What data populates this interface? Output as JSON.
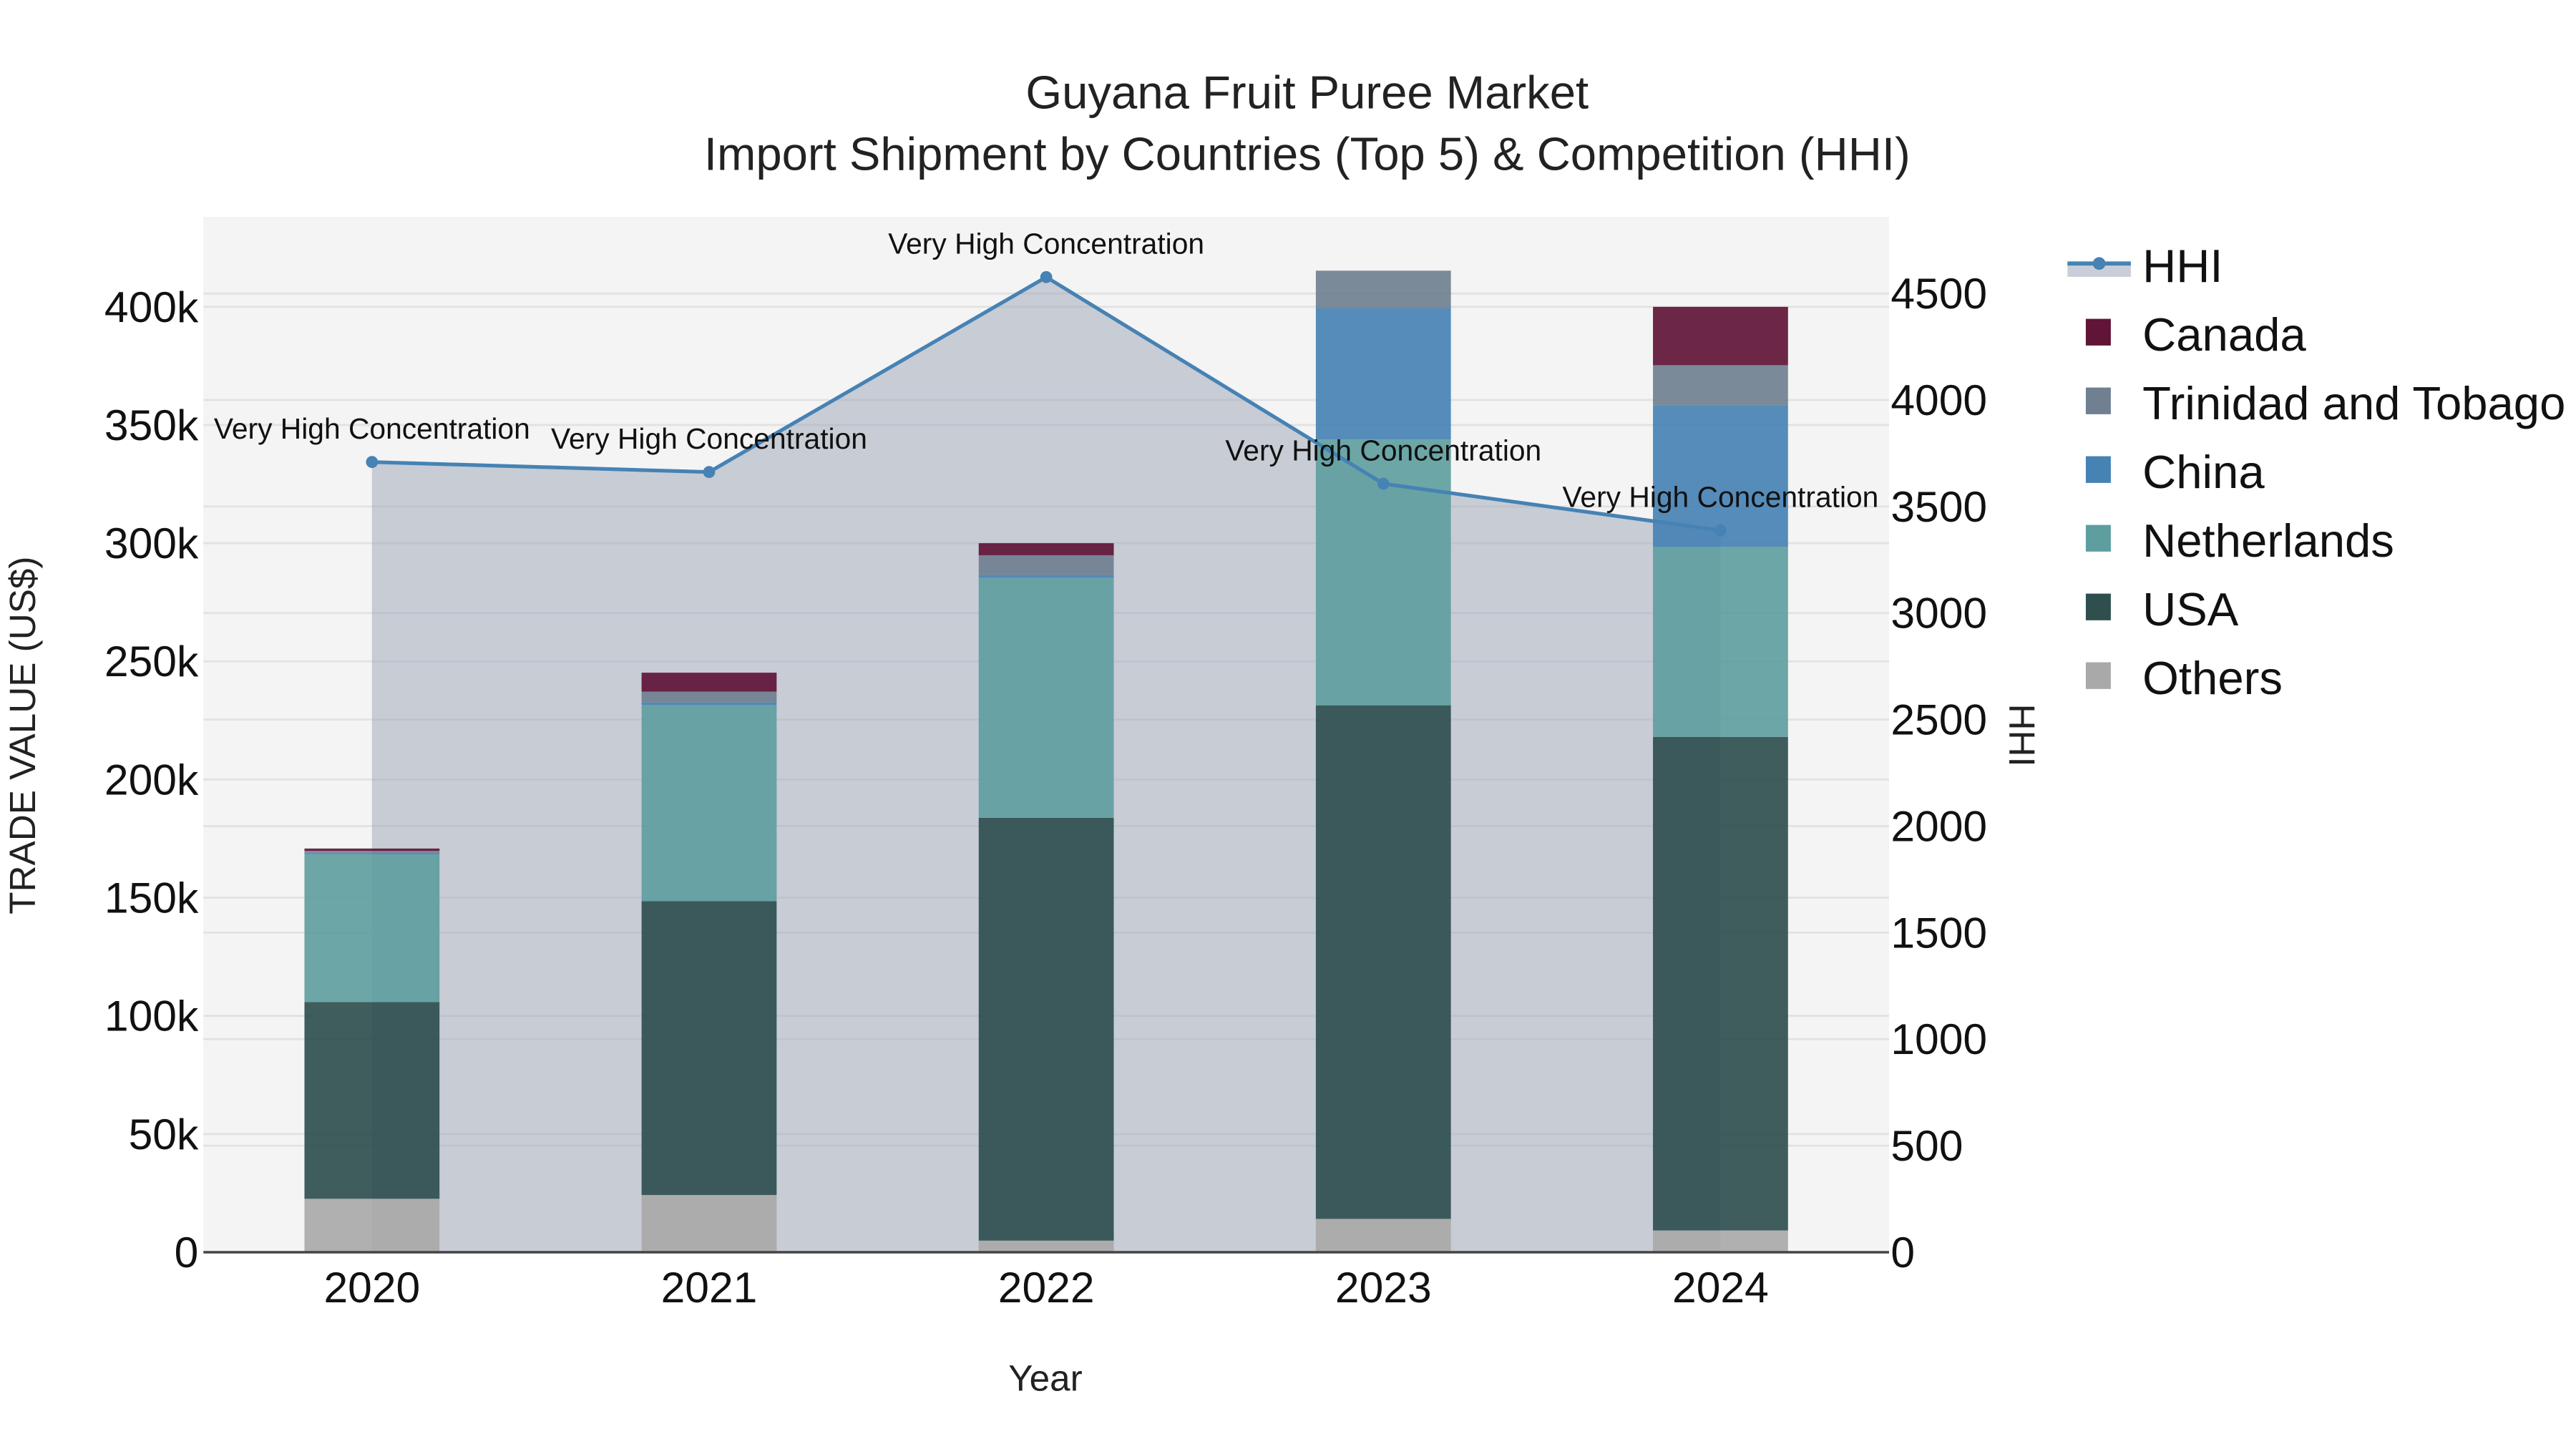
{
  "chart_data": {
    "type": "bar",
    "stacked": true,
    "title": "Guyana Fruit Puree Market",
    "subtitle": "Import Shipment by Countries (Top 5) & Competition (HHI)",
    "xlabel": "Year",
    "ylabel": "TRADE VALUE (US$)",
    "y2label": "HHI",
    "categories": [
      "2020",
      "2021",
      "2022",
      "2023",
      "2024"
    ],
    "ylim": [
      0,
      435000
    ],
    "y2lim": [
      0,
      4850
    ],
    "yticks": [
      "0",
      "50k",
      "100k",
      "150k",
      "200k",
      "250k",
      "300k",
      "350k",
      "400k"
    ],
    "y2ticks": [
      "0",
      "500",
      "1000",
      "1500",
      "2000",
      "2500",
      "3000",
      "3500",
      "4000",
      "4500"
    ],
    "grid": true,
    "legend_position": "right",
    "series": [
      {
        "name": "Others",
        "color": "#A9A9A9",
        "values": [
          22600,
          24200,
          4900,
          14100,
          9200
        ]
      },
      {
        "name": "USA",
        "color": "#2F4F4F",
        "values": [
          83200,
          124300,
          178900,
          217300,
          208800
        ]
      },
      {
        "name": "Netherlands",
        "color": "#5F9EA0",
        "values": [
          62600,
          83100,
          101600,
          112500,
          80400
        ]
      },
      {
        "name": "China",
        "color": "#4682B4",
        "values": [
          600,
          1000,
          1200,
          55600,
          60000
        ]
      },
      {
        "name": "Trinidad and Tobago",
        "color": "#708090",
        "values": [
          800,
          4600,
          8300,
          15800,
          16900
        ]
      },
      {
        "name": "Canada",
        "color": "#601436",
        "values": [
          1000,
          8000,
          5100,
          0,
          24700
        ]
      }
    ],
    "line_series": {
      "name": "HHI",
      "axis": "y2",
      "color": "#4682B4",
      "fill_color": "rgba(176,186,200,0.6)",
      "values": [
        3709,
        3662,
        4577,
        3607,
        3388
      ],
      "labels": [
        "Very High Concentration",
        "Very High Concentration",
        "Very High Concentration",
        "Very High Concentration",
        "Very High Concentration"
      ]
    }
  },
  "legend": {
    "items": [
      "HHI",
      "Canada",
      "Trinidad and Tobago",
      "China",
      "Netherlands",
      "USA",
      "Others"
    ]
  }
}
